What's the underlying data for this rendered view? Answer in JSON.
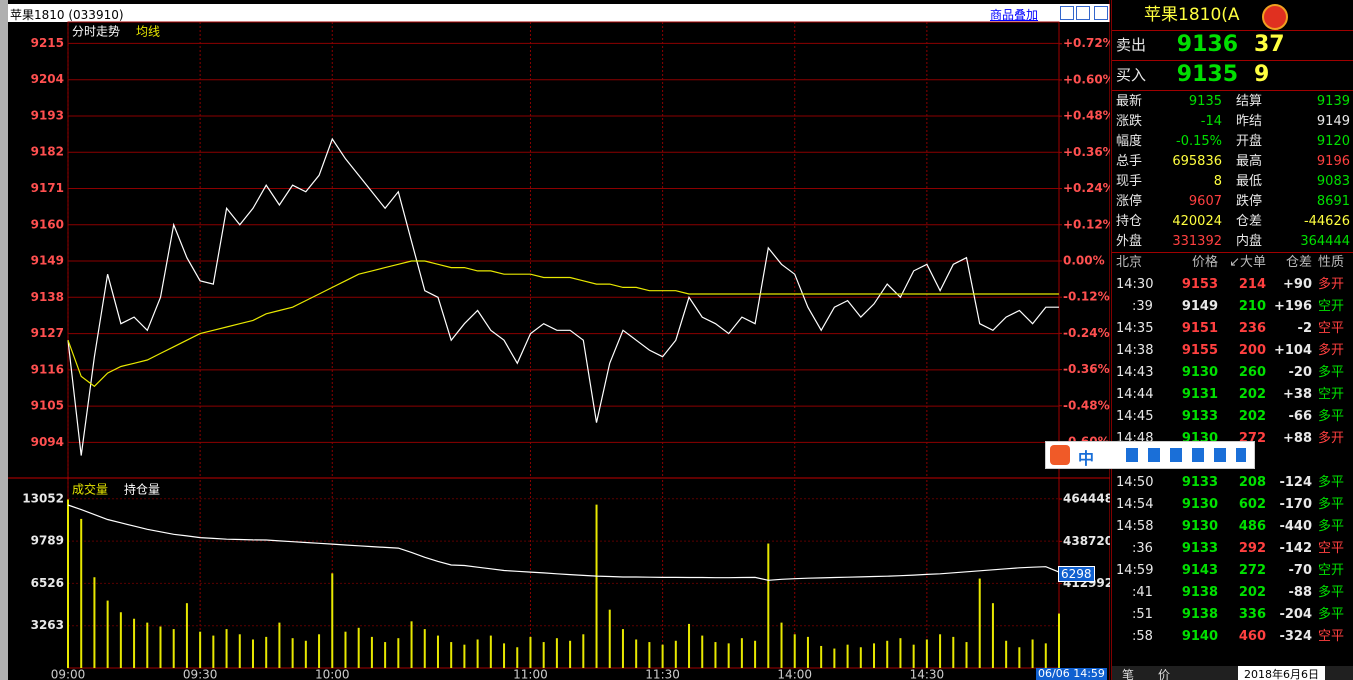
{
  "window": {
    "title": "苹果1810 (033910)",
    "overlay_button": "商品叠加",
    "cursor_time": "06/06 14:59",
    "cursor_value": "6298",
    "date": "2018年6月6日",
    "tabs": [
      "笔",
      "价"
    ],
    "ime_mode": "中"
  },
  "chart_data": [
    {
      "type": "line",
      "grid": true,
      "ylim": [
        9083.5,
        9221.5
      ],
      "yticks": [
        9094,
        9105,
        9116,
        9127,
        9138,
        9149,
        9160,
        9171,
        9182,
        9193,
        9204,
        9215
      ],
      "y2lim": [
        -0.716,
        0.792
      ],
      "y2ticks": [
        {
          "value": -0.6,
          "label": "-0.60%"
        },
        {
          "value": -0.48,
          "label": "-0.48%"
        },
        {
          "value": -0.36,
          "label": "-0.36%"
        },
        {
          "value": -0.24,
          "label": "-0.24%"
        },
        {
          "value": -0.12,
          "label": "-0.12%"
        },
        {
          "value": 0,
          "label": "0.00%"
        },
        {
          "value": 0.12,
          "label": "+0.12%"
        },
        {
          "value": 0.24,
          "label": "+0.24%"
        },
        {
          "value": 0.36,
          "label": "+0.36%"
        },
        {
          "value": 0.48,
          "label": "+0.48%"
        },
        {
          "value": 0.6,
          "label": "+0.60%"
        },
        {
          "value": 0.72,
          "label": "+0.72%"
        }
      ],
      "series": [
        {
          "name": "分时走势",
          "color": "#ffffff",
          "values": [
            9125,
            9090,
            9120,
            9145,
            9130,
            9132,
            9128,
            9138,
            9160,
            9150,
            9143,
            9142,
            9165,
            9160,
            9165,
            9172,
            9166,
            9172,
            9170,
            9175,
            9186,
            9180,
            9175,
            9170,
            9165,
            9170,
            9155,
            9140,
            9138,
            9125,
            9130,
            9134,
            9128,
            9125,
            9118,
            9127,
            9130,
            9128,
            9128,
            9125,
            9100,
            9118,
            9128,
            9125,
            9122,
            9120,
            9125,
            9138,
            9132,
            9130,
            9127,
            9132,
            9130,
            9153,
            9148,
            9145,
            9135,
            9128,
            9135,
            9137,
            9132,
            9136,
            9142,
            9138,
            9146,
            9148,
            9140,
            9148,
            9150,
            9130,
            9128,
            9132,
            9134,
            9130,
            9135,
            9135
          ]
        },
        {
          "name": "均线",
          "color": "#e8e800",
          "values": [
            9125,
            9114,
            9111,
            9115,
            9117,
            9118,
            9119,
            9121,
            9123,
            9125,
            9127,
            9128,
            9129,
            9130,
            9131,
            9133,
            9134,
            9135,
            9137,
            9139,
            9141,
            9143,
            9145,
            9146,
            9147,
            9148,
            9149,
            9149,
            9148,
            9147,
            9147,
            9146,
            9146,
            9145,
            9145,
            9145,
            9144,
            9144,
            9144,
            9143,
            9142,
            9142,
            9141,
            9141,
            9140,
            9140,
            9140,
            9139,
            9139,
            9139,
            9139,
            9139,
            9139,
            9139,
            9139,
            9139,
            9139,
            9139,
            9139,
            9139,
            9139,
            9139,
            9139,
            9139,
            9139,
            9139,
            9139,
            9139,
            9139,
            9139,
            9139,
            9139,
            9139,
            9139,
            9139,
            9139
          ]
        }
      ]
    },
    {
      "type": "bar",
      "grid": true,
      "categories": [
        "09:00",
        null,
        null,
        null,
        null,
        null,
        null,
        null,
        null,
        null,
        "09:30",
        null,
        null,
        null,
        null,
        null,
        null,
        null,
        null,
        null,
        "10:00",
        null,
        null,
        null,
        null,
        null,
        null,
        null,
        null,
        null,
        null,
        null,
        null,
        null,
        null,
        "11:00",
        null,
        null,
        null,
        null,
        null,
        null,
        null,
        null,
        null,
        "11:30",
        null,
        null,
        null,
        null,
        null,
        null,
        null,
        null,
        null,
        "14:00",
        null,
        null,
        null,
        null,
        null,
        null,
        null,
        null,
        null,
        "14:30",
        null,
        null,
        null,
        null,
        null,
        null,
        null,
        null,
        null,
        null
      ],
      "ylim": [
        0,
        14500
      ],
      "yticks": [
        3263,
        6526,
        9789,
        13052
      ],
      "y2lim": [
        361700,
        476000
      ],
      "y2ticks": [
        412992,
        438720,
        464448
      ],
      "series": [
        {
          "name": "成交量",
          "color": "#e8e800",
          "values": [
            13000,
            11500,
            7000,
            5200,
            4300,
            3800,
            3500,
            3200,
            3000,
            5000,
            2800,
            2500,
            3000,
            2600,
            2200,
            2400,
            3500,
            2300,
            2100,
            2600,
            7300,
            2800,
            3100,
            2400,
            2000,
            2300,
            3600,
            3000,
            2500,
            2000,
            1800,
            2200,
            2500,
            1900,
            1600,
            2400,
            2000,
            2300,
            2100,
            2600,
            12600,
            4500,
            3000,
            2200,
            2000,
            1800,
            2100,
            3400,
            2500,
            2000,
            1900,
            2300,
            2100,
            9600,
            3500,
            2600,
            2400,
            1700,
            1500,
            1800,
            1600,
            1900,
            2100,
            2300,
            1800,
            2200,
            2600,
            2400,
            2000,
            6900,
            5000,
            2100,
            1600,
            2200,
            1900,
            4200
          ]
        },
        {
          "name": "持仓量",
          "color": "#ffffff",
          "type": "line",
          "axis": "y2",
          "values": [
            460800,
            458000,
            455000,
            452000,
            450000,
            448000,
            446000,
            444500,
            443000,
            442000,
            441000,
            440500,
            440000,
            439800,
            439600,
            439500,
            439000,
            438500,
            438000,
            437500,
            437000,
            436500,
            436000,
            435500,
            435000,
            434600,
            432000,
            429000,
            426500,
            424300,
            424000,
            423000,
            422000,
            421000,
            420500,
            420000,
            419500,
            419000,
            418500,
            418000,
            417600,
            417300,
            417000,
            417000,
            416900,
            416800,
            416800,
            416700,
            416700,
            416600,
            416600,
            416700,
            416800,
            415000,
            415600,
            416000,
            416300,
            416500,
            416700,
            416900,
            417100,
            417300,
            417500,
            417800,
            418200,
            418600,
            419000,
            419600,
            420200,
            420800,
            421400,
            422000,
            422600,
            423000,
            423300,
            420024
          ]
        }
      ]
    }
  ],
  "quote": {
    "title": "苹果1810(A",
    "ask": {
      "label": "卖出",
      "price": "9136",
      "volume": "37"
    },
    "bid": {
      "label": "买入",
      "price": "9135",
      "volume": "9"
    },
    "stats": [
      [
        "最新",
        "9135",
        "结算",
        "9139"
      ],
      [
        "涨跌",
        "-14",
        "昨结",
        "9149"
      ],
      [
        "幅度",
        "-0.15%",
        "开盘",
        "9120"
      ],
      [
        "总手",
        "695836",
        "最高",
        "9196"
      ],
      [
        "现手",
        "8",
        "最低",
        "9083"
      ],
      [
        "涨停",
        "9607",
        "跌停",
        "8691"
      ],
      [
        "持仓",
        "420024",
        "仓差",
        "-44626"
      ],
      [
        "外盘",
        "331392",
        "内盘",
        "364444"
      ]
    ],
    "trades": {
      "header": [
        "北京",
        "价格",
        "↙大单",
        "仓差",
        "性质"
      ],
      "rows": [
        [
          "14:30",
          "9153",
          "214",
          "+90",
          "多开"
        ],
        [
          ":39",
          "9149",
          "210",
          "+196",
          "空开"
        ],
        [
          "14:35",
          "9151",
          "236",
          "-2",
          "空平"
        ],
        [
          "14:38",
          "9155",
          "200",
          "+104",
          "多开"
        ],
        [
          "14:43",
          "9130",
          "260",
          "-20",
          "多平"
        ],
        [
          "14:44",
          "9131",
          "202",
          "+38",
          "空开"
        ],
        [
          "14:45",
          "9133",
          "202",
          "-66",
          "多平"
        ],
        [
          "14:48",
          "9130",
          "272",
          "+88",
          "多开"
        ],
        [
          "14:50",
          "9133",
          "208",
          "-124",
          "多平"
        ],
        [
          "14:54",
          "9130",
          "602",
          "-170",
          "多平"
        ],
        [
          "14:58",
          "9130",
          "486",
          "-440",
          "多平"
        ],
        [
          ":36",
          "9133",
          "292",
          "-142",
          "空平"
        ],
        [
          "14:59",
          "9143",
          "272",
          "-70",
          "空开"
        ],
        [
          ":41",
          "9138",
          "202",
          "-88",
          "多平"
        ],
        [
          ":51",
          "9138",
          "336",
          "-204",
          "多平"
        ],
        [
          ":58",
          "9140",
          "460",
          "-324",
          "空平"
        ]
      ]
    }
  }
}
